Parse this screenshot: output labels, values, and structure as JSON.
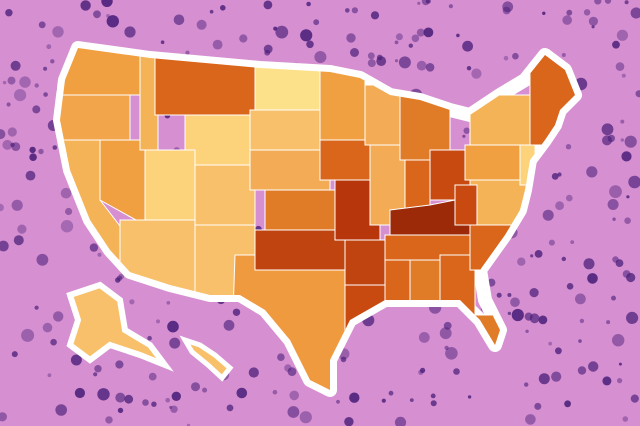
{
  "map": {
    "background": "#d68fd0",
    "cell_color": "#4a1f7a",
    "outline": "#ffffff",
    "fills": [
      "#f0a040",
      "#f2a54a",
      "#f5b357",
      "#d9661a",
      "#fcd27a",
      "#f8c06a",
      "#fde08a",
      "#f3ab55",
      "#e07b28",
      "#c0440f",
      "#f09a40",
      "#b8360c",
      "#c84a10",
      "#9c2a08"
    ]
  }
}
